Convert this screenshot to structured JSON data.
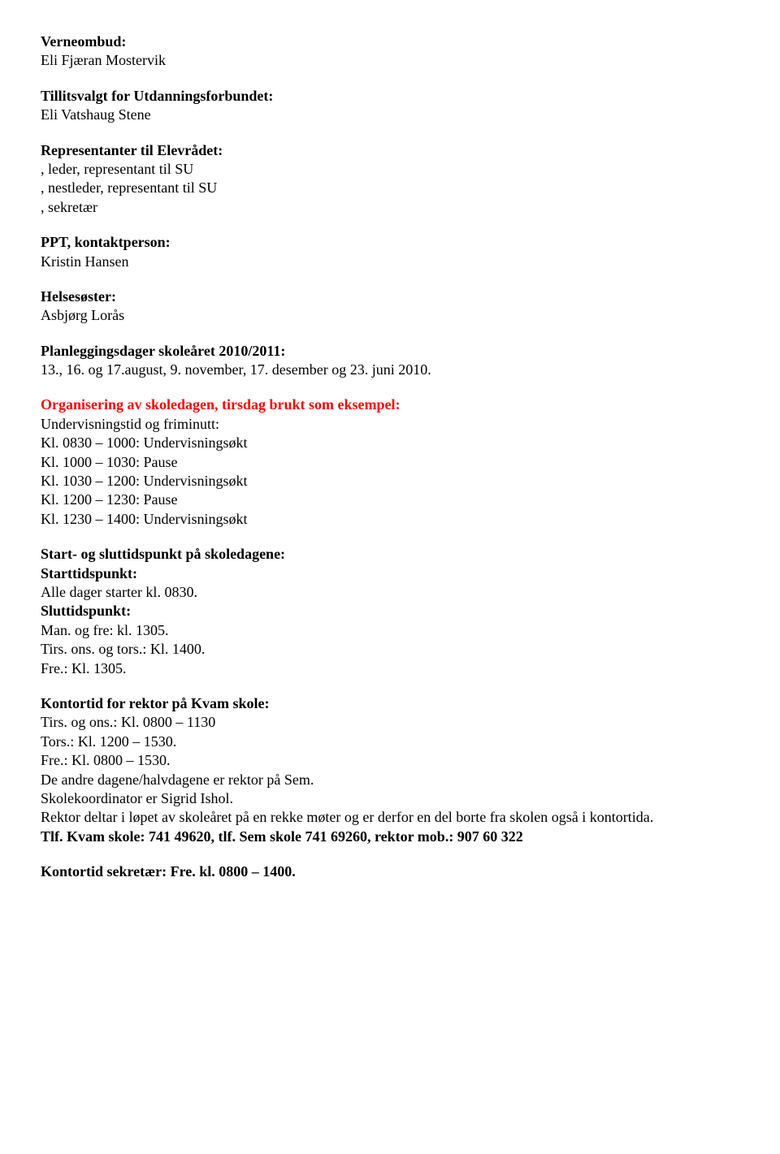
{
  "doc": {
    "verneombud": {
      "heading": "Verneombud:",
      "name": "Eli Fjæran Mostervik"
    },
    "tillitsvalgt": {
      "heading": "Tillitsvalgt for Utdanningsforbundet:",
      "name": "Eli Vatshaug Stene"
    },
    "elevradet": {
      "heading": "Representanter til Elevrådet:",
      "line1": ", leder, representant til SU",
      "line2": ", nestleder, representant til SU",
      "line3": ", sekretær"
    },
    "ppt": {
      "heading": "PPT, kontaktperson:",
      "name": "Kristin Hansen"
    },
    "helsesoster": {
      "heading": "Helsesøster:",
      "name": "Asbjørg Lorås"
    },
    "planlegging": {
      "heading": "Planleggingsdager skoleåret 2010/2011:",
      "text": "13., 16. og 17.august, 9. november, 17. desember og 23. juni 2010."
    },
    "organisering": {
      "heading": "Organisering av skoledagen, tirsdag brukt som eksempel:",
      "line1": "Undervisningstid og friminutt:",
      "line2": "Kl. 0830 – 1000: Undervisningsøkt",
      "line3": "Kl. 1000 – 1030: Pause",
      "line4": "Kl. 1030 – 1200: Undervisningsøkt",
      "line5": "Kl. 1200 – 1230: Pause",
      "line6": "Kl. 1230 – 1400: Undervisningsøkt"
    },
    "startogslutt": {
      "heading": "Start- og sluttidspunkt på skoledagene:",
      "start_label": "Starttidspunkt:",
      "start_text": "Alle dager starter kl. 0830.",
      "slutt_label": "Sluttidspunkt:",
      "slutt_line1": "Man. og fre: kl. 1305.",
      "slutt_line2": "Tirs. ons. og tors.: Kl. 1400.",
      "slutt_line3": "Fre.: Kl. 1305."
    },
    "kontortid_rektor": {
      "heading": "Kontortid for rektor på Kvam skole:",
      "line1": "Tirs. og ons.: Kl. 0800 – 1130",
      "line2": "Tors.: Kl. 1200 – 1530.",
      "line3": "Fre.: Kl. 0800 – 1530.",
      "line4": "De andre dagene/halvdagene er rektor på Sem.",
      "line5": "Skolekoordinator er Sigrid Ishol.",
      "line6": "Rektor deltar i løpet av skoleåret på en rekke møter og er derfor en del borte fra skolen også i kontortida.",
      "line7": "Tlf. Kvam skole: 741 49620, tlf. Sem skole 741 69260, rektor mob.: 907 60 322"
    },
    "kontortid_sekretaer": {
      "heading": "Kontortid sekretær: Fre. kl. 0800 – 1400."
    }
  }
}
